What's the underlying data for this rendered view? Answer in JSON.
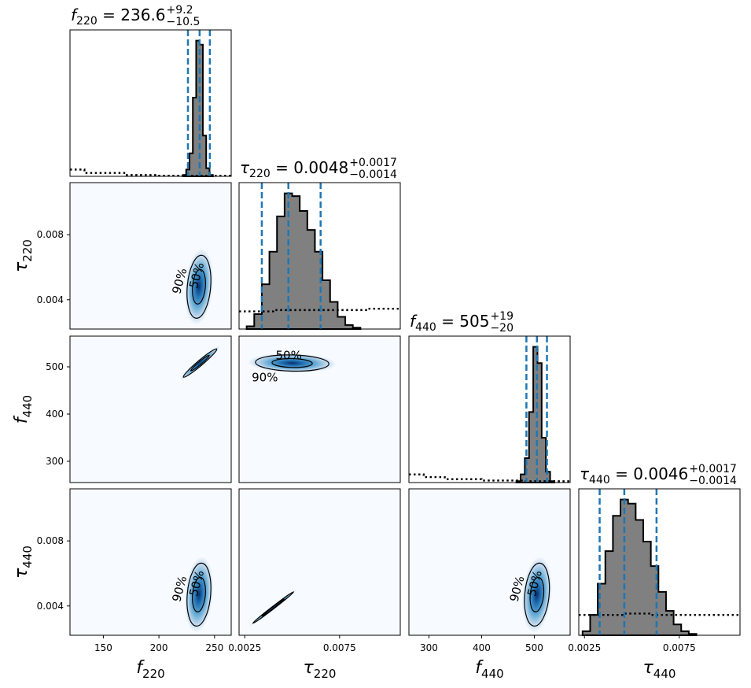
{
  "chart_data": {
    "type": "corner",
    "parameters": [
      {
        "key": "f220",
        "symbol": "f",
        "sub": "220",
        "range": [
          120,
          265
        ],
        "ticks": [
          150,
          200,
          250
        ],
        "tick_labels": [
          "150",
          "200",
          "250"
        ],
        "title": {
          "median": "236.6",
          "plus": "+9.2",
          "minus": "−10.5"
        },
        "quantiles": [
          226.1,
          236.6,
          245.8
        ],
        "posterior": {
          "x": [
            223,
            226,
            229,
            232,
            235,
            238,
            241,
            244,
            247
          ],
          "y": [
            0.01,
            0.05,
            0.17,
            0.58,
            1.0,
            0.97,
            0.3,
            0.06,
            0.01
          ]
        },
        "prior": {
          "x": [
            120,
            133,
            170,
            200,
            220,
            265
          ],
          "y": [
            0.05,
            0.025,
            0.01,
            0.005,
            0.004,
            0.004
          ]
        }
      },
      {
        "key": "tau220",
        "symbol": "τ",
        "sub": "220",
        "range": [
          0.0022,
          0.0107
        ],
        "ticks": [
          0.0025,
          0.0075
        ],
        "tick_labels": [
          "0.0025",
          "0.0075"
        ],
        "title": {
          "median": "0.0048",
          "plus": "+0.0017",
          "minus": "−0.0014"
        },
        "quantiles": [
          0.0034,
          0.0048,
          0.0065
        ],
        "posterior": {
          "x": [
            0.0028,
            0.0032,
            0.0036,
            0.004,
            0.0044,
            0.0048,
            0.0052,
            0.0056,
            0.006,
            0.0064,
            0.0068,
            0.0072,
            0.0076,
            0.008,
            0.0084
          ],
          "y": [
            0.02,
            0.11,
            0.33,
            0.57,
            0.83,
            1.0,
            0.98,
            0.87,
            0.73,
            0.57,
            0.36,
            0.2,
            0.09,
            0.03,
            0.01
          ]
        },
        "prior": {
          "x": [
            0.0022,
            0.004,
            0.006,
            0.008,
            0.009,
            0.0107
          ],
          "y": [
            0.13,
            0.14,
            0.14,
            0.14,
            0.15,
            0.12
          ]
        }
      },
      {
        "key": "f440",
        "symbol": "f",
        "sub": "440",
        "range": [
          262,
          568
        ],
        "ticks": [
          300,
          400,
          500
        ],
        "tick_labels": [
          "300",
          "400",
          "500"
        ],
        "title": {
          "median": "505",
          "plus": "+19",
          "minus": "−20"
        },
        "quantiles": [
          485,
          505,
          524
        ],
        "posterior": {
          "x": [
            470,
            478,
            486,
            494,
            502,
            510,
            518,
            526,
            534
          ],
          "y": [
            0.01,
            0.06,
            0.18,
            0.52,
            1.0,
            0.88,
            0.33,
            0.08,
            0.01
          ]
        },
        "prior": {
          "x": [
            262,
            290,
            330,
            400,
            480,
            568
          ],
          "y": [
            0.06,
            0.04,
            0.025,
            0.015,
            0.01,
            0.008
          ]
        }
      },
      {
        "key": "tau440",
        "symbol": "τ",
        "sub": "440",
        "range": [
          0.0022,
          0.0107
        ],
        "ticks": [
          0.0025,
          0.0075
        ],
        "tick_labels": [
          "0.0025",
          "0.0075"
        ],
        "title": {
          "median": "0.0046",
          "plus": "+0.0017",
          "minus": "−0.0014"
        },
        "quantiles": [
          0.0033,
          0.0046,
          0.0063
        ],
        "posterior": {
          "x": [
            0.0026,
            0.003,
            0.0034,
            0.0038,
            0.0042,
            0.0046,
            0.005,
            0.0054,
            0.0058,
            0.0062,
            0.0066,
            0.007,
            0.0074,
            0.0078,
            0.0082
          ],
          "y": [
            0.03,
            0.15,
            0.38,
            0.62,
            0.88,
            1.0,
            0.97,
            0.85,
            0.69,
            0.51,
            0.32,
            0.18,
            0.08,
            0.03,
            0.01
          ]
        },
        "prior": {
          "x": [
            0.0022,
            0.0045,
            0.006,
            0.0075,
            0.009,
            0.0107
          ],
          "y": [
            0.15,
            0.16,
            0.15,
            0.15,
            0.15,
            0.15
          ]
        }
      }
    ],
    "yaxis_ticks": {
      "tau220": {
        "ticks": [
          0.004,
          0.008
        ],
        "tick_labels": [
          "0.004",
          "0.008"
        ],
        "range": [
          0.0022,
          0.0112
        ]
      },
      "f440": {
        "ticks": [
          300,
          400,
          500
        ],
        "tick_labels": [
          "300",
          "400",
          "500"
        ],
        "range": [
          255,
          565
        ]
      },
      "tau440": {
        "ticks": [
          0.004,
          0.008
        ],
        "tick_labels": [
          "0.004",
          "0.008"
        ],
        "range": [
          0.0022,
          0.0112
        ]
      }
    },
    "contour_labels": [
      "50%",
      "90%"
    ],
    "joint": [
      {
        "row": 1,
        "col": 0,
        "center": [
          236,
          0.0048
        ],
        "sx": 5,
        "sy": 0.0009,
        "rho": 0.2
      },
      {
        "row": 2,
        "col": 0,
        "center": [
          237,
          508
        ],
        "sx": 7,
        "sy": 14,
        "rho": 0.97
      },
      {
        "row": 2,
        "col": 1,
        "center": [
          0.005,
          508
        ],
        "sx": 0.0009,
        "sy": 8,
        "rho": -0.1
      },
      {
        "row": 3,
        "col": 0,
        "center": [
          236,
          0.0047
        ],
        "sx": 5,
        "sy": 0.0009,
        "rho": 0.2
      },
      {
        "row": 3,
        "col": 1,
        "center": [
          0.004,
          0.0039
        ],
        "sx": 0.0005,
        "sy": 0.00045,
        "rho": 0.995
      },
      {
        "row": 3,
        "col": 2,
        "center": [
          505,
          0.0047
        ],
        "sx": 11,
        "sy": 0.0009,
        "rho": 0.2
      }
    ],
    "grid": "off",
    "legend": "none",
    "colors": {
      "hist_fill": "#808080",
      "quantile": "#1f77b4",
      "density_low": "#f7fbff",
      "density_high": "#08306b"
    }
  }
}
